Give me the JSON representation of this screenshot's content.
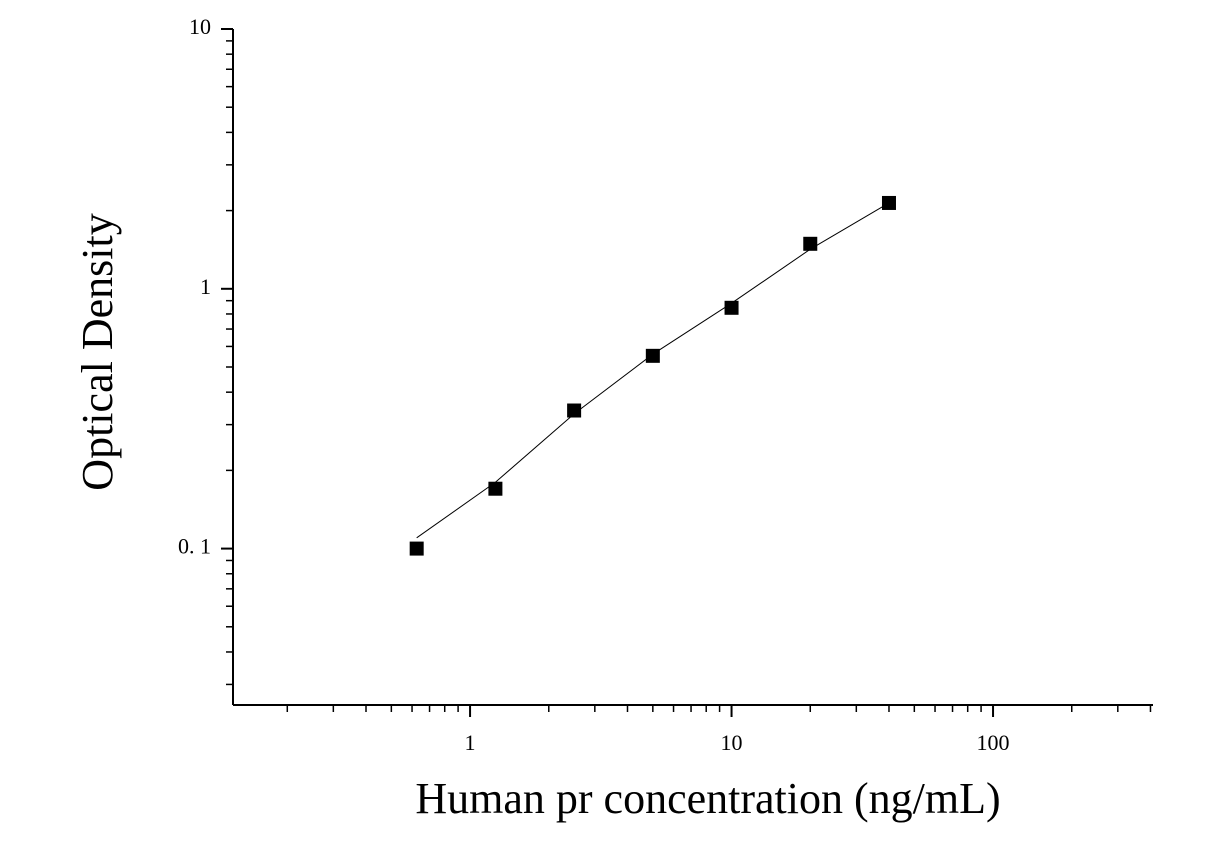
{
  "chart_data": {
    "type": "scatter",
    "xlabel": "Human pr concentration (ng/mL)",
    "ylabel": "Optical Density",
    "xscale": "log",
    "yscale": "log",
    "xlim": [
      0.124,
      409
    ],
    "ylim": [
      0.025,
      10
    ],
    "xticks": [
      1,
      10,
      100
    ],
    "xminorticks": [
      0.2,
      0.3,
      0.4,
      0.5,
      0.6,
      0.7,
      0.8,
      0.9,
      2,
      3,
      4,
      5,
      6,
      7,
      8,
      9,
      20,
      30,
      40,
      50,
      60,
      70,
      80,
      90,
      200,
      300,
      400
    ],
    "yticks": [
      {
        "value": 0.1,
        "label": "0. 1"
      },
      1,
      10
    ],
    "yminorticks": [
      0.03,
      0.04,
      0.05,
      0.06,
      0.07,
      0.08,
      0.09,
      0.2,
      0.3,
      0.4,
      0.5,
      0.6,
      0.7,
      0.8,
      0.9,
      2,
      3,
      4,
      5,
      6,
      7,
      8,
      9
    ],
    "series": [
      {
        "type": "scatter",
        "color": "#000000",
        "x": [
          0.625,
          1.25,
          2.5,
          5,
          10,
          20,
          40
        ],
        "values": [
          0.1,
          0.17,
          0.34,
          0.552,
          0.845,
          1.49,
          2.14
        ]
      },
      {
        "type": "line",
        "color": "#000000",
        "x": [
          0.625,
          1.25,
          2.5,
          5,
          10,
          20,
          40
        ],
        "values": [
          0.11,
          0.18,
          0.33,
          0.56,
          0.88,
          1.42,
          2.14
        ]
      }
    ]
  }
}
